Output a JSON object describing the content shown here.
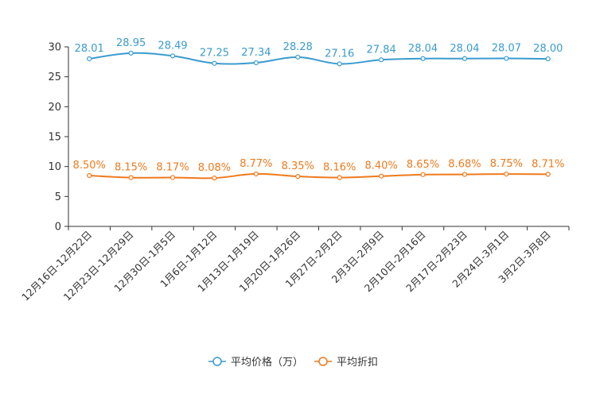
{
  "chart_data": {
    "type": "line",
    "categories": [
      "12月16日-12月22日",
      "12月23日-12月29日",
      "12月30日-1月5日",
      "1月6日-1月12日",
      "1月13日-1月19日",
      "1月20日-1月26日",
      "1月27日-2月2日",
      "2月3日-2月9日",
      "2月10日-2月16日",
      "2月17日-2月23日",
      "2月24日-3月1日",
      "3月2日-3月8日"
    ],
    "series": [
      {
        "name": "平均价格（万）",
        "values": [
          28.01,
          28.95,
          28.49,
          27.25,
          27.34,
          28.28,
          27.16,
          27.84,
          28.04,
          28.04,
          28.07,
          28.0
        ],
        "labels": [
          "28.01",
          "28.95",
          "28.49",
          "27.25",
          "27.34",
          "28.28",
          "27.16",
          "27.84",
          "28.04",
          "28.04",
          "28.07",
          "28.00"
        ],
        "color": "#3a9bd0"
      },
      {
        "name": "平均折扣",
        "values": [
          8.5,
          8.15,
          8.17,
          8.08,
          8.77,
          8.35,
          8.16,
          8.4,
          8.65,
          8.68,
          8.75,
          8.71
        ],
        "labels": [
          "8.50%",
          "8.15%",
          "8.17%",
          "8.08%",
          "8.77%",
          "8.35%",
          "8.16%",
          "8.40%",
          "8.65%",
          "8.68%",
          "8.75%",
          "8.71%"
        ],
        "color": "#ee7a1e"
      }
    ],
    "ylim": [
      0,
      30
    ],
    "yticks": [
      0,
      5,
      10,
      15,
      20,
      25,
      30
    ],
    "title": "",
    "xlabel": "",
    "ylabel": "",
    "legend": "bottom-center",
    "grid": false
  }
}
